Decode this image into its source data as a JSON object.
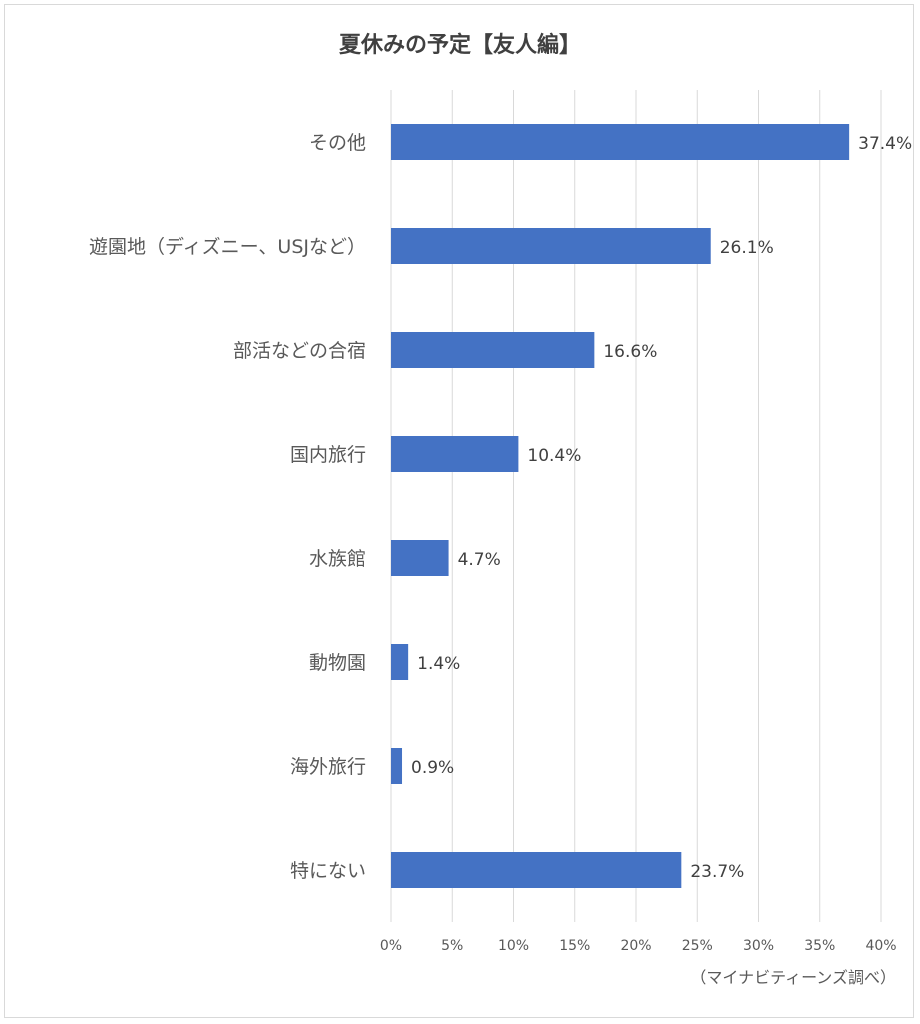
{
  "chart_data": {
    "type": "bar",
    "orientation": "horizontal",
    "title": "夏休みの予定【友人編】",
    "categories": [
      "その他",
      "遊園地（ディズニー、USJなど）",
      "部活などの合宿",
      "国内旅行",
      "水族館",
      "動物園",
      "海外旅行",
      "特にない"
    ],
    "values": [
      37.4,
      26.1,
      16.6,
      10.4,
      4.7,
      1.4,
      0.9,
      23.7
    ],
    "value_labels": [
      "37.4%",
      "26.1%",
      "16.6%",
      "10.4%",
      "4.7%",
      "1.4%",
      "0.9%",
      "23.7%"
    ],
    "x_ticks": [
      "0%",
      "5%",
      "10%",
      "15%",
      "20%",
      "25%",
      "30%",
      "35%",
      "40%"
    ],
    "xlim": [
      0,
      40
    ],
    "grid": true,
    "bar_color": "#4472c4",
    "source": "（マイナビティーンズ調べ）"
  }
}
